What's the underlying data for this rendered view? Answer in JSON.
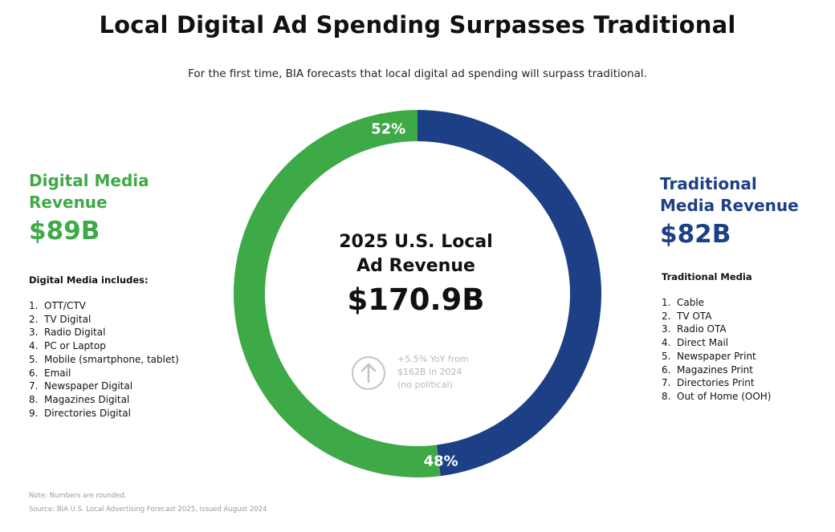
{
  "title": "Local Digital Ad Spending Surpasses Traditional",
  "subtitle": "For the first time, BIA forecasts that local digital ad spending will surpass traditional.",
  "colors": {
    "digital": "#3daa47",
    "traditional": "#1c3f86",
    "text": "#111111",
    "muted": "#b8b8b8"
  },
  "left": {
    "heading_line1": "Digital Media",
    "heading_line2": "Revenue",
    "amount": "$89B",
    "list_title": "Digital Media includes:",
    "items": [
      {
        "num": "1.",
        "label": "OTT/CTV"
      },
      {
        "num": "2.",
        "label": "TV Digital"
      },
      {
        "num": "3.",
        "label": "Radio Digital"
      },
      {
        "num": "4.",
        "label": "PC or Laptop"
      },
      {
        "num": "5.",
        "label": "Mobile (smartphone, tablet)"
      },
      {
        "num": "6.",
        "label": "Email"
      },
      {
        "num": "7.",
        "label": "Newspaper Digital"
      },
      {
        "num": "8.",
        "label": "Magazines Digital"
      },
      {
        "num": "9.",
        "label": "Directories Digital"
      }
    ]
  },
  "right": {
    "heading_line1": "Traditional",
    "heading_line2": "Media Revenue",
    "amount": "$82B",
    "list_title": "Traditional Media",
    "items": [
      {
        "num": "1.",
        "label": "Cable"
      },
      {
        "num": "2.",
        "label": "TV OTA"
      },
      {
        "num": "3.",
        "label": "Radio OTA"
      },
      {
        "num": "4.",
        "label": "Direct Mail"
      },
      {
        "num": "5.",
        "label": "Newspaper Print"
      },
      {
        "num": "6.",
        "label": "Magazines Print"
      },
      {
        "num": "7.",
        "label": "Directories Print"
      },
      {
        "num": "8.",
        "label": "Out of Home (OOH)"
      }
    ]
  },
  "center": {
    "line1": "2025 U.S. Local",
    "line2": "Ad Revenue",
    "total": "$170.9B",
    "growth_line1": "+5.5% YoY from",
    "growth_line2": "$162B in 2024",
    "growth_line3": "(no political)",
    "growth_icon": "arrow-up-circle-icon"
  },
  "chart_data": {
    "type": "pie",
    "donut": true,
    "title": "2025 U.S. Local Ad Revenue",
    "total": "$170.9B",
    "slices": [
      {
        "name": "Digital Media Revenue",
        "value": 52,
        "label": "52%",
        "amount": "$89B",
        "color": "#3daa47"
      },
      {
        "name": "Traditional Media Revenue",
        "value": 48,
        "label": "48%",
        "amount": "$82B",
        "color": "#1c3f86"
      }
    ]
  },
  "footer": {
    "note": "Note: Numbers are rounded.",
    "source": "Source: BIA U.S. Local Advertising Forecast 2025, issued August 2024"
  }
}
